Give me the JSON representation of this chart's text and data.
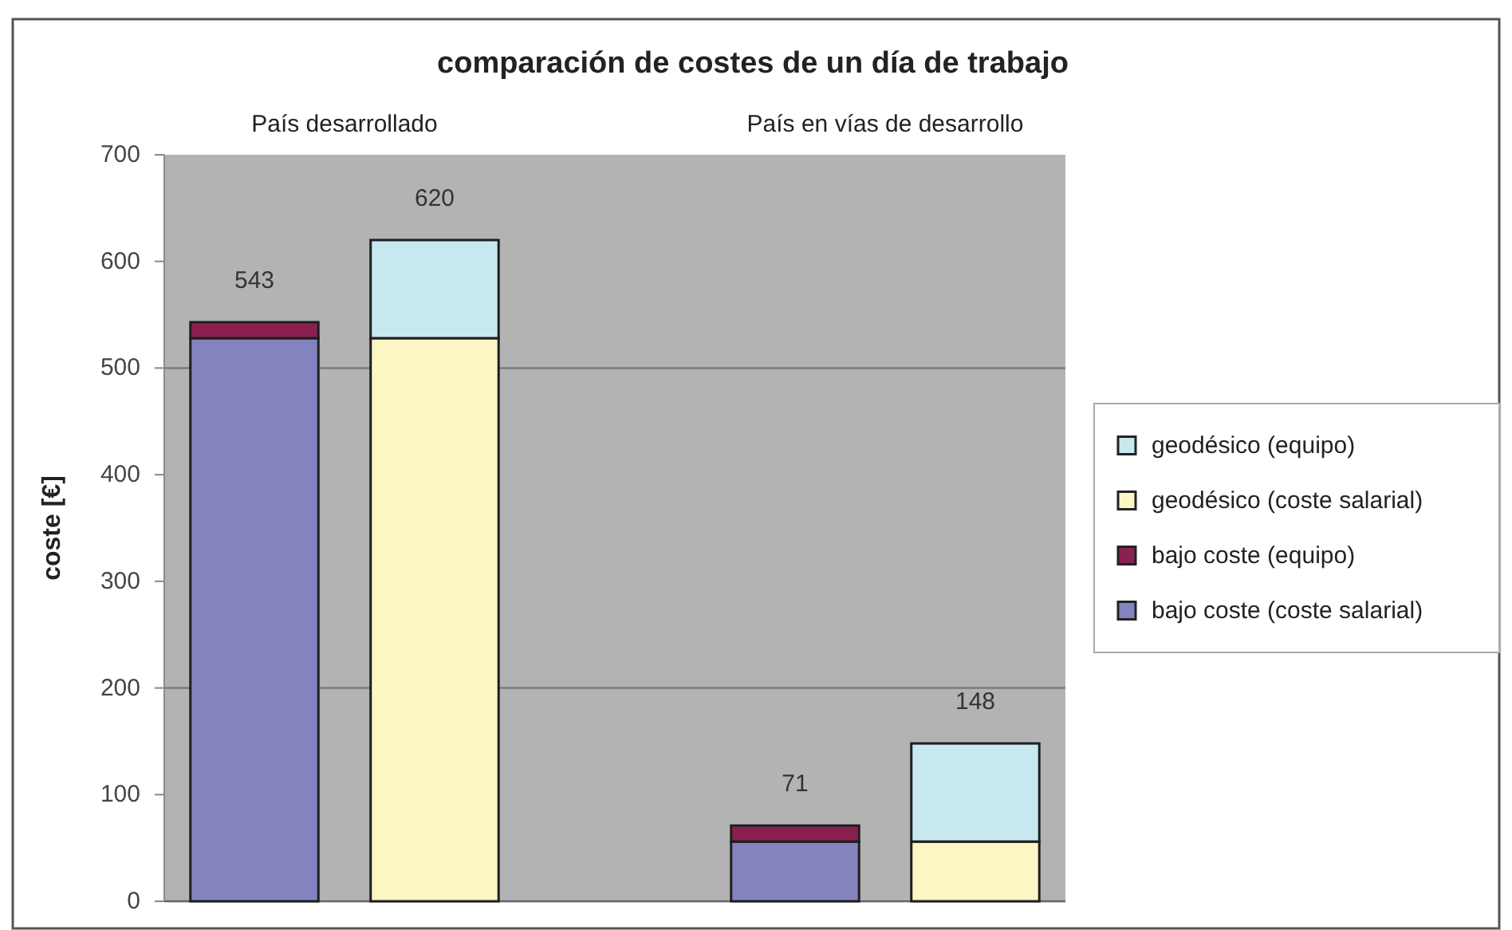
{
  "chart_data": {
    "type": "bar",
    "stacked": true,
    "title": "comparación de costes de un día de trabajo",
    "ylabel": "coste [€]",
    "annotations": [
      "País desarrollado",
      "País en vías de desarrollo"
    ],
    "categories": [
      null,
      null,
      null,
      null,
      null
    ],
    "series": [
      {
        "name": "bajo coste (coste salarial)",
        "color": "#8383c0",
        "values": [
          528,
          null,
          null,
          56,
          null
        ]
      },
      {
        "name": "bajo coste (equipo)",
        "color": "#8b2050",
        "values": [
          15,
          null,
          null,
          15,
          null
        ]
      },
      {
        "name": "geodésico (coste salarial)",
        "color": "#fcf6c4",
        "values": [
          null,
          528,
          null,
          null,
          56
        ]
      },
      {
        "name": "geodésico (equipo)",
        "color": "#c8e8f0",
        "values": [
          null,
          92,
          null,
          null,
          92
        ]
      }
    ],
    "totals": [
      "543",
      "620",
      null,
      "71",
      "148"
    ],
    "ylim": [
      0,
      700
    ],
    "yticks": [
      0,
      100,
      200,
      300,
      400,
      500,
      600,
      700
    ],
    "ref_lines": [
      {
        "axis": "y",
        "value": 200,
        "color": "#7a7a7a"
      },
      {
        "axis": "y",
        "value": 500,
        "color": "#7a7a7a"
      }
    ],
    "legend": "right"
  }
}
